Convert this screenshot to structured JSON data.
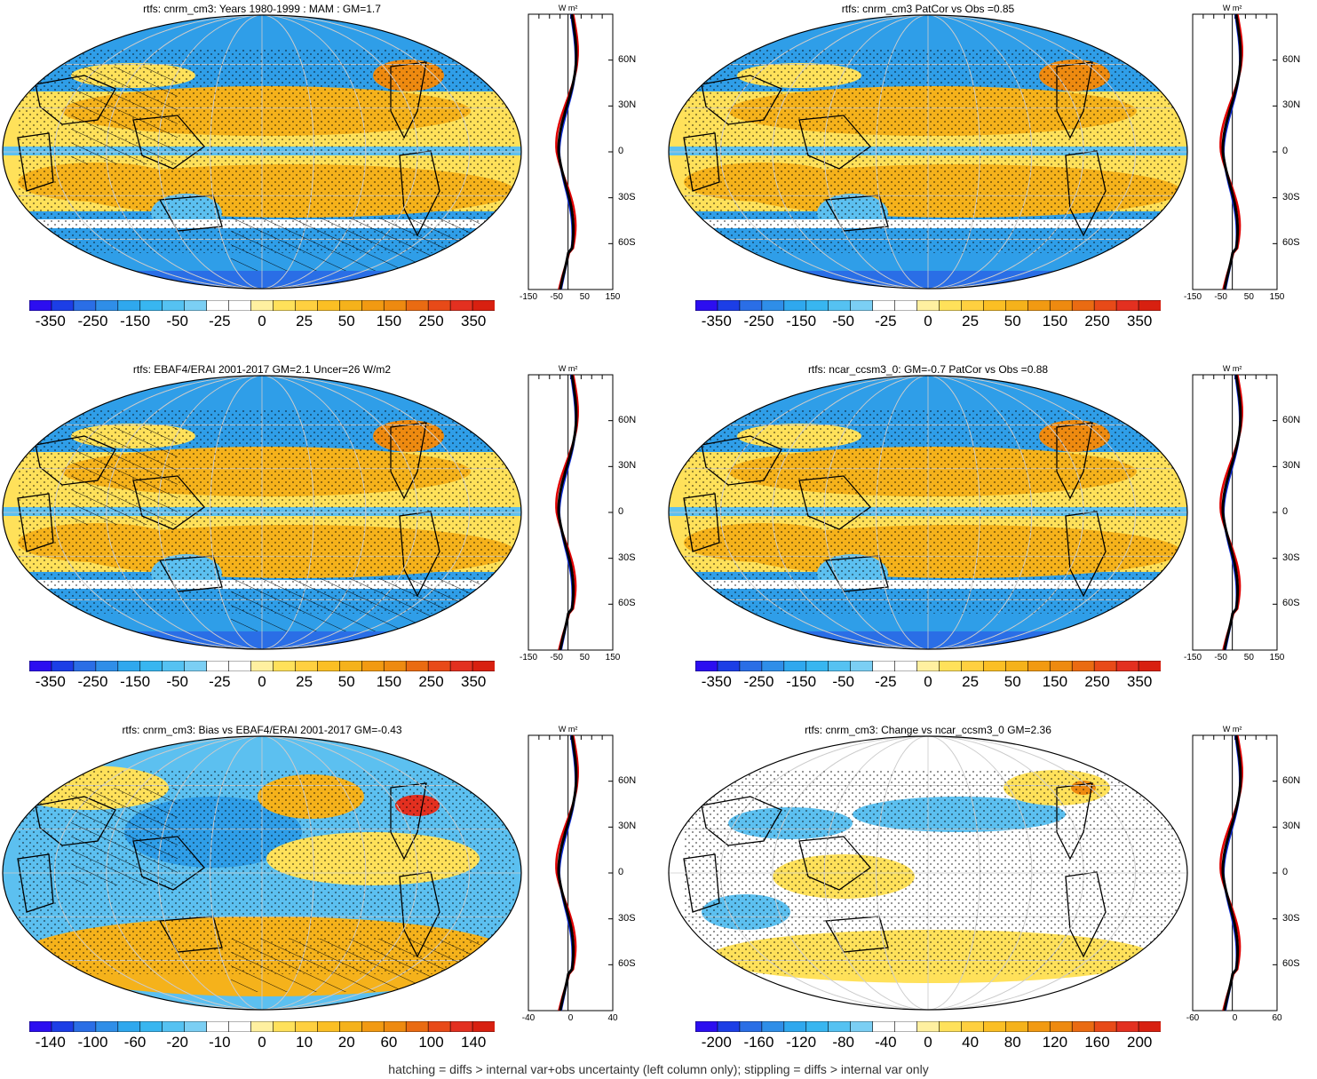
{
  "colors": {
    "blue_strong": "#2a6ee6",
    "blue": "#2f9ee8",
    "blue_light": "#5cc0f0",
    "yellow": "#ffe15a",
    "orange": "#f5b21b",
    "orange_dark": "#ee8a10",
    "red": "#e33020",
    "profile_model": "#e00000",
    "profile_obs": "#1030e0",
    "profile_mean": "#000000"
  },
  "colorbar_palette": [
    "#2c0ef0",
    "#1c3ee6",
    "#2a6ee6",
    "#2f8ee8",
    "#2fa8ee",
    "#38b6f0",
    "#55c2f2",
    "#7bcff4",
    "#ffffff",
    "#ffffff",
    "#fff0a0",
    "#ffe15a",
    "#ffd040",
    "#fbbf24",
    "#f5b21b",
    "#f29a12",
    "#ee8a10",
    "#ea6b12",
    "#e84a18",
    "#e33020",
    "#d82010"
  ],
  "lat_labels": [
    "60N",
    "30N",
    "0",
    "30S",
    "60S"
  ],
  "wm2_label": "W m²",
  "footer": "hatching = diffs > internal var+obs uncertainty (left column only); stippling = diffs > internal var only",
  "panels": [
    {
      "title": "rtfs: cnrm_cm3: Years 1980-1999 : MAM : GM=1.7",
      "map_style": "model",
      "colorbar": {
        "labels": [
          "-350",
          "-250",
          "-150",
          "-50",
          "-25",
          "0",
          "25",
          "50",
          "150",
          "250",
          "350"
        ]
      },
      "profile": {
        "xticks": [
          "-150",
          "-50",
          "50",
          "150"
        ]
      }
    },
    {
      "title": "rtfs: cnrm_cm3 PatCor vs Obs =0.85",
      "map_style": "model",
      "colorbar": {
        "labels": [
          "-350",
          "-250",
          "-150",
          "-50",
          "-25",
          "0",
          "25",
          "50",
          "150",
          "250",
          "350"
        ]
      },
      "profile": {
        "xticks": [
          "-150",
          "-50",
          "50",
          "150"
        ]
      }
    },
    {
      "title": "rtfs: EBAF4/ERAI 2001-2017 GM=2.1 Uncer=26 W/m2",
      "map_style": "model",
      "colorbar": {
        "labels": [
          "-350",
          "-250",
          "-150",
          "-50",
          "-25",
          "0",
          "25",
          "50",
          "150",
          "250",
          "350"
        ]
      },
      "profile": {
        "xticks": [
          "-150",
          "-50",
          "50",
          "150"
        ]
      }
    },
    {
      "title": "rtfs: ncar_ccsm3_0: GM=-0.7 PatCor vs Obs =0.88",
      "map_style": "model",
      "colorbar": {
        "labels": [
          "-350",
          "-250",
          "-150",
          "-50",
          "-25",
          "0",
          "25",
          "50",
          "150",
          "250",
          "350"
        ]
      },
      "profile": {
        "xticks": [
          "-150",
          "-50",
          "50",
          "150"
        ]
      }
    },
    {
      "title": "rtfs: cnrm_cm3: Bias vs EBAF4/ERAI 2001-2017 GM=-0.43",
      "map_style": "bias",
      "colorbar": {
        "labels": [
          "-140",
          "-100",
          "-60",
          "-20",
          "-10",
          "0",
          "10",
          "20",
          "60",
          "100",
          "140"
        ]
      },
      "profile": {
        "xticks": [
          "-40",
          "0",
          "40"
        ]
      }
    },
    {
      "title": "rtfs: cnrm_cm3: Change vs ncar_ccsm3_0 GM=2.36",
      "map_style": "change",
      "colorbar": {
        "labels": [
          "-200",
          "-160",
          "-120",
          "-80",
          "-40",
          "0",
          "40",
          "80",
          "120",
          "160",
          "200"
        ]
      },
      "profile": {
        "xticks": [
          "-60",
          "0",
          "60"
        ]
      }
    }
  ]
}
